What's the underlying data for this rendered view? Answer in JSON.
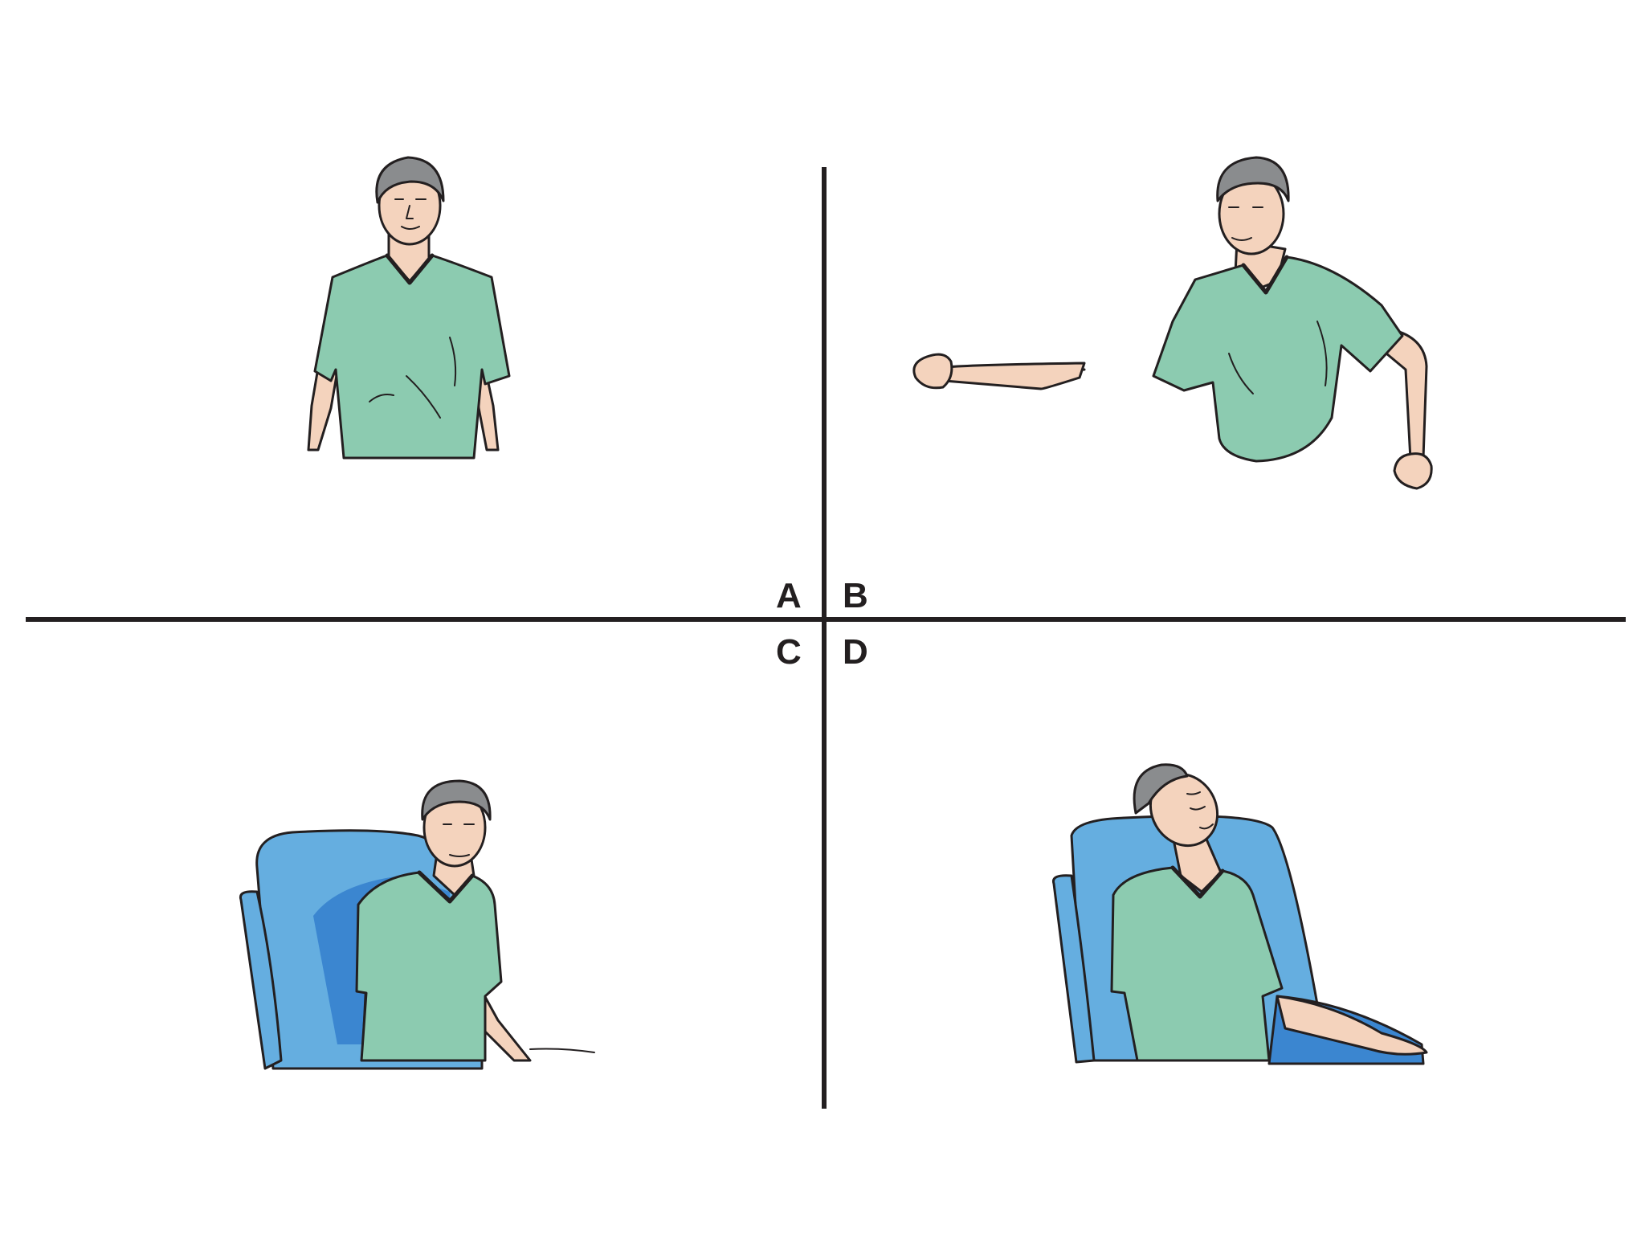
{
  "panels": [
    {
      "id": "A",
      "label": "A",
      "pose": "standing-arms-at-sides"
    },
    {
      "id": "B",
      "label": "B",
      "pose": "standing-arm-raised-fist"
    },
    {
      "id": "C",
      "label": "C",
      "pose": "seated-alert-in-armchair"
    },
    {
      "id": "D",
      "label": "D",
      "pose": "seated-head-tilted-back-eyes-closed"
    }
  ],
  "colors": {
    "shirt": "#8ccbb0",
    "shirt_shade": "#5fae8d",
    "skin": "#f4d3bd",
    "hair": "#8a8c8e",
    "chair": "#65aee0",
    "chair_shade": "#3b86d0",
    "outline": "#231f20"
  }
}
